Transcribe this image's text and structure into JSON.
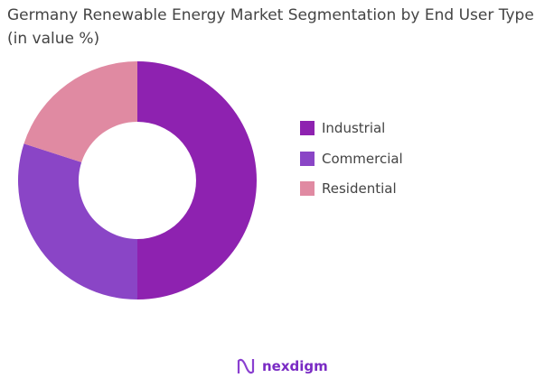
{
  "chart_data": {
    "type": "pie",
    "donut": true,
    "title": "Germany Renewable Energy Market Segmentation by End User Type (in value %)",
    "categories": [
      "Industrial",
      "Commercial",
      "Residential"
    ],
    "values": [
      50,
      30,
      20
    ],
    "colors": [
      "#8e22b0",
      "#8a45c6",
      "#e08aa2"
    ],
    "legend_position": "right"
  },
  "logo": {
    "text": "nexdigm"
  }
}
